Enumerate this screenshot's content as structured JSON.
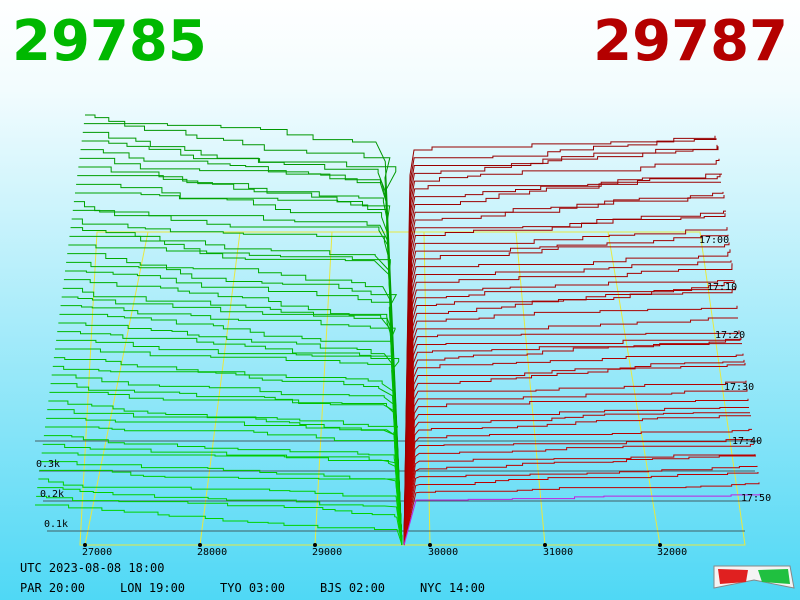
{
  "header": {
    "bid": "29785",
    "ask": "29787"
  },
  "price_axis": [
    "27000",
    "28000",
    "29000",
    "30000",
    "31000",
    "32000"
  ],
  "time_axis": [
    "17:00",
    "17:10",
    "17:20",
    "17:30",
    "17:40",
    "17:50"
  ],
  "depth_axis": [
    "0.3k",
    "0.2k",
    "0.1k"
  ],
  "footer": {
    "utc": "UTC 2023-08-08 18:00",
    "zones": [
      "PAR 20:00",
      "LON 19:00",
      "TYO 03:00",
      "BJS 02:00",
      "NYC 14:00"
    ]
  }
}
